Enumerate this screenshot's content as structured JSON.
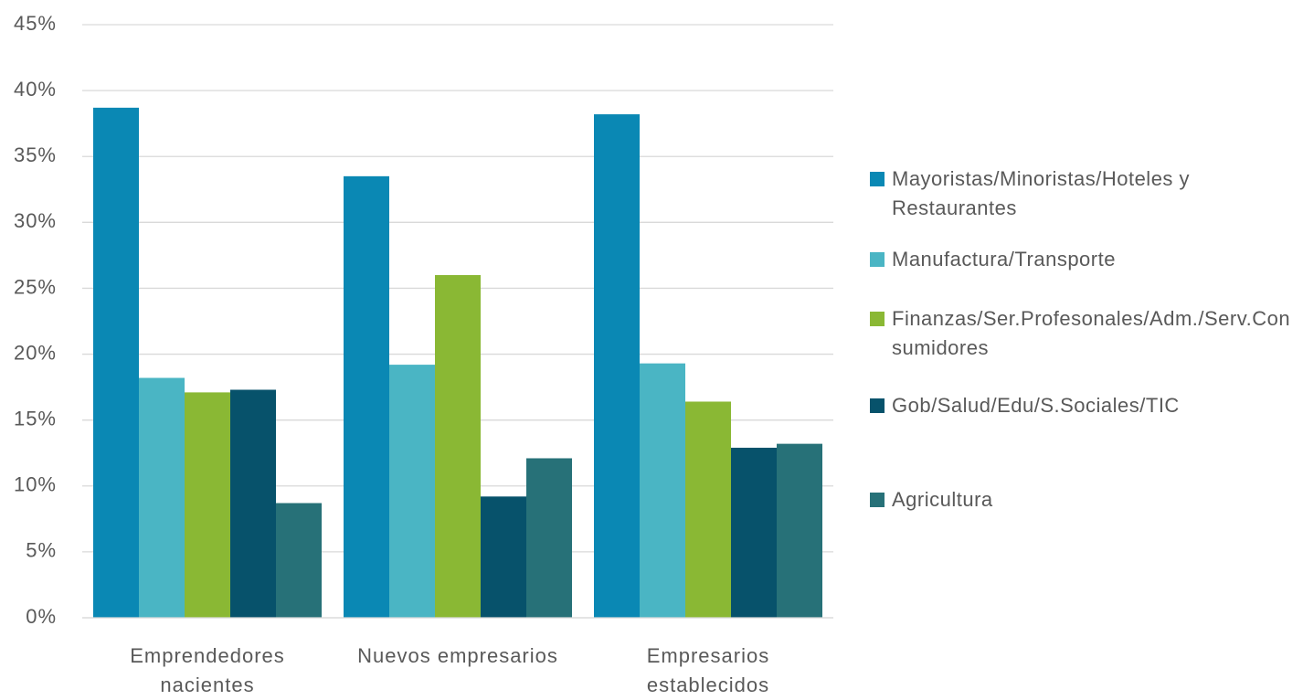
{
  "chart_data": {
    "type": "bar",
    "categories": [
      "Emprendedores nacientes",
      "Nuevos empresarios",
      "Empresarios establecidos"
    ],
    "series": [
      {
        "name": "Mayoristas/Minoristas/Hoteles y Restaurantes",
        "color": "#0a88b4",
        "values": [
          38.7,
          33.5,
          38.2
        ]
      },
      {
        "name": "Manufactura/Transporte",
        "color": "#4ab5c4",
        "values": [
          18.2,
          19.2,
          19.3
        ]
      },
      {
        "name": "Finanzas/Ser.Profesonales/Adm./Serv.Consumidores",
        "color": "#8ab834",
        "values": [
          17.1,
          26.0,
          16.4
        ]
      },
      {
        "name": "Gob/Salud/Edu/S.Sociales/TIC",
        "color": "#07526b",
        "values": [
          17.3,
          9.2,
          12.9
        ]
      },
      {
        "name": "Agricultura",
        "color": "#277178",
        "values": [
          8.7,
          12.1,
          13.2
        ]
      }
    ],
    "ylim": [
      0,
      45
    ],
    "yticks": [
      {
        "value": 0,
        "label": "0%"
      },
      {
        "value": 5,
        "label": "5%"
      },
      {
        "value": 10,
        "label": "10%"
      },
      {
        "value": 15,
        "label": "15%"
      },
      {
        "value": 20,
        "label": "20%"
      },
      {
        "value": 25,
        "label": "25%"
      },
      {
        "value": 30,
        "label": "30%"
      },
      {
        "value": 35,
        "label": "35%"
      },
      {
        "value": 40,
        "label": "40%"
      },
      {
        "value": 45,
        "label": "45%"
      }
    ],
    "grid": true,
    "legend": "right"
  }
}
